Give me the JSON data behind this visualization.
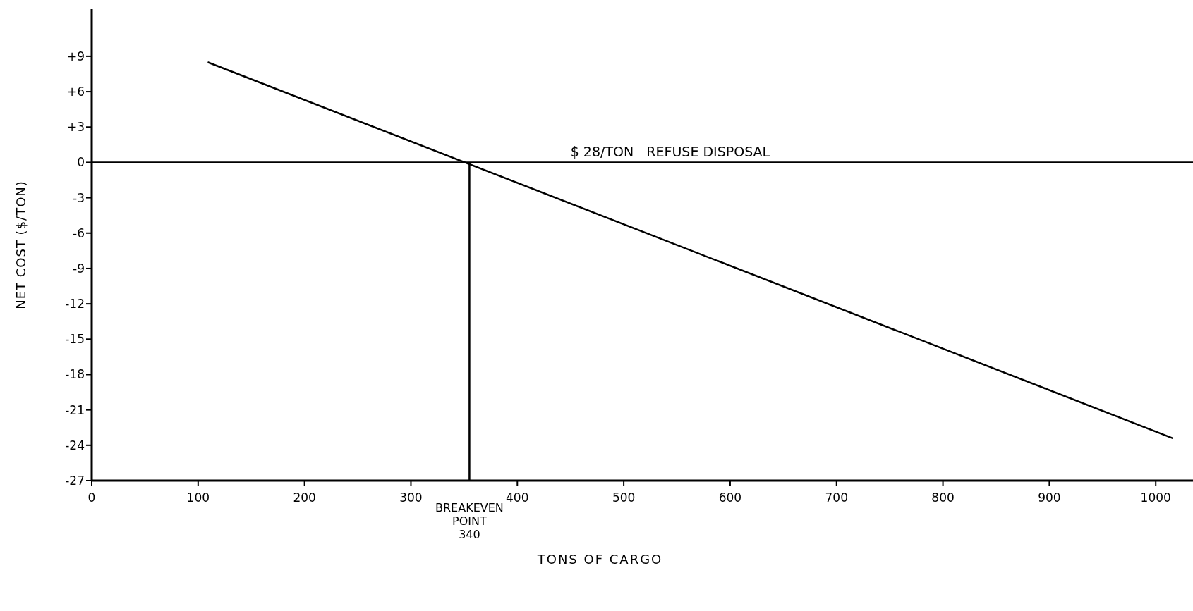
{
  "chart_data": {
    "type": "line",
    "xlabel": "TONS OF CARGO",
    "ylabel": "NET COST ($/TON)",
    "xlim": [
      0,
      1035
    ],
    "xticks": [
      0,
      100,
      200,
      300,
      400,
      500,
      600,
      700,
      800,
      900,
      1000
    ],
    "ylim": [
      -27,
      13
    ],
    "yticks": [
      {
        "value": 9,
        "label": "+9"
      },
      {
        "value": 6,
        "label": "+6"
      },
      {
        "value": 3,
        "label": "+3"
      },
      0,
      -3,
      -6,
      -9,
      -12,
      -15,
      -18,
      -21,
      -24,
      -27
    ],
    "series": [
      {
        "color": "#000000",
        "x": [
          109,
          1016
        ],
        "values": [
          8.5,
          -23.4
        ]
      },
      {
        "color": "#000000",
        "x": [
          355,
          355
        ],
        "values": [
          -27,
          0
        ]
      }
    ],
    "ref_lines": [
      {
        "axis": "y",
        "value": 0,
        "label": "$ 28/TON   REFUSE DISPOSAL",
        "color": "#000000"
      }
    ],
    "annotations": [
      {
        "text": "BREAKEVEN POINT 340",
        "x": 355,
        "y": -27
      }
    ],
    "grid": false
  }
}
